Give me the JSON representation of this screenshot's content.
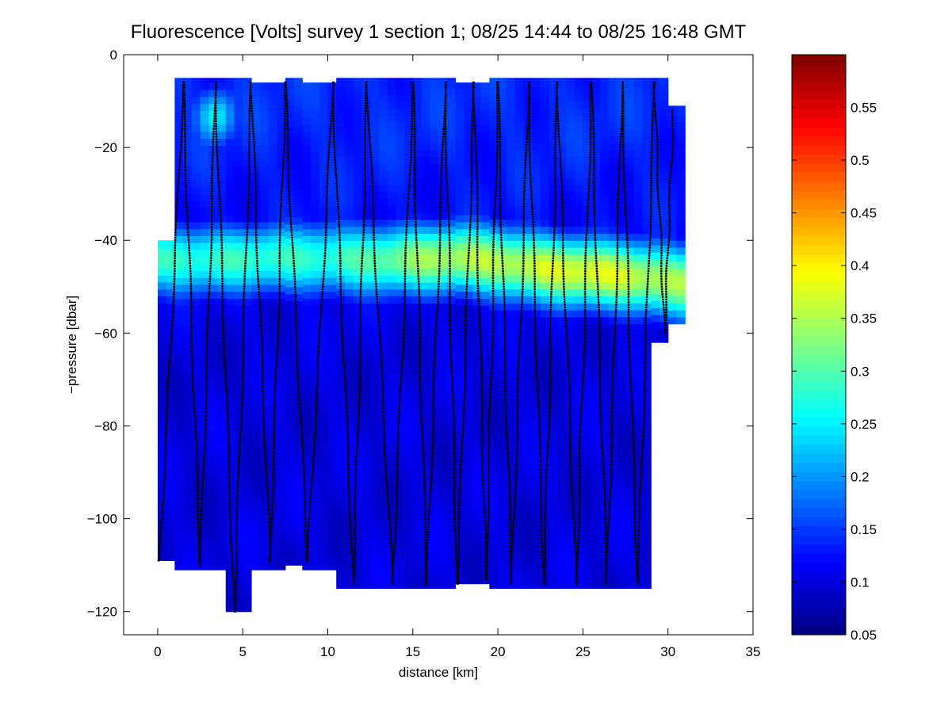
{
  "chart_data": {
    "type": "heatmap",
    "title": "Fluorescence [Volts] survey 1 section 1; 08/25 14:44 to 08/25 16:48 GMT",
    "xlabel": "distance [km]",
    "ylabel": "−pressure [dbar]",
    "xlim": [
      -2,
      35
    ],
    "ylim": [
      -125,
      0
    ],
    "xticks": [
      0,
      5,
      10,
      15,
      20,
      25,
      30,
      35
    ],
    "yticks": [
      0,
      -20,
      -40,
      -60,
      -80,
      -100,
      -120
    ],
    "ytick_labels": [
      "0",
      "−20",
      "−40",
      "−60",
      "−80",
      "−100",
      "−120"
    ],
    "colorbar": {
      "colormap": "jet",
      "clim": [
        0.05,
        0.6
      ],
      "ticks": [
        0.05,
        0.1,
        0.15,
        0.2,
        0.25,
        0.3,
        0.35,
        0.4,
        0.45,
        0.5,
        0.55
      ],
      "tick_labels": [
        "0.05",
        "0.1",
        "0.15",
        "0.2",
        "0.25",
        "0.3",
        "0.35",
        "0.4",
        "0.45",
        "0.5",
        "0.55"
      ]
    },
    "data_coverage": [
      {
        "x": [
          0,
          1
        ],
        "y": [
          -109,
          -40
        ]
      },
      {
        "x": [
          1,
          5.5
        ],
        "y": [
          -111,
          -5
        ]
      },
      {
        "x": [
          4,
          5.5
        ],
        "y": [
          -120,
          -111
        ]
      },
      {
        "x": [
          5.5,
          7.5
        ],
        "y": [
          -111,
          -6
        ]
      },
      {
        "x": [
          7.5,
          8.5
        ],
        "y": [
          -110,
          -5
        ]
      },
      {
        "x": [
          8.5,
          10.5
        ],
        "y": [
          -111,
          -6
        ]
      },
      {
        "x": [
          10.5,
          17.5
        ],
        "y": [
          -115,
          -5
        ]
      },
      {
        "x": [
          17.5,
          19.5
        ],
        "y": [
          -114,
          -6
        ]
      },
      {
        "x": [
          19.5,
          29
        ],
        "y": [
          -115,
          -5
        ]
      },
      {
        "x": [
          29,
          30
        ],
        "y": [
          -62,
          -5
        ]
      },
      {
        "x": [
          30,
          31
        ],
        "y": [
          -58,
          -11
        ]
      }
    ],
    "field_features": [
      {
        "kind": "chlorophyll_max_layer",
        "depth": -44,
        "thickness": 8,
        "value_range": [
          0.22,
          0.36
        ]
      },
      {
        "kind": "surface_patch",
        "x": 3.4,
        "depth": -13,
        "value": 0.22
      },
      {
        "kind": "background",
        "value_range": [
          0.06,
          0.14
        ]
      }
    ],
    "profiles": [
      {
        "x_top": 1.5,
        "x_bottom": 0.1,
        "y_top": -6,
        "y_bottom": -109
      },
      {
        "x_top": 1.5,
        "x_bottom": 2.5,
        "y_top": -6,
        "y_bottom": -110
      },
      {
        "x_top": 3.4,
        "x_bottom": 2.5,
        "y_top": -6,
        "y_bottom": -110
      },
      {
        "x_top": 3.4,
        "x_bottom": 4.5,
        "y_top": -6,
        "y_bottom": -120
      },
      {
        "x_top": 5.5,
        "x_bottom": 4.5,
        "y_top": -6,
        "y_bottom": -120
      },
      {
        "x_top": 5.5,
        "x_bottom": 6.6,
        "y_top": -6,
        "y_bottom": -109
      },
      {
        "x_top": 7.5,
        "x_bottom": 6.6,
        "y_top": -6,
        "y_bottom": -109
      },
      {
        "x_top": 7.5,
        "x_bottom": 8.8,
        "y_top": -6,
        "y_bottom": -109
      },
      {
        "x_top": 10.3,
        "x_bottom": 8.8,
        "y_top": -6,
        "y_bottom": -109
      },
      {
        "x_top": 10.3,
        "x_bottom": 11.5,
        "y_top": -6,
        "y_bottom": -114
      },
      {
        "x_top": 12.3,
        "x_bottom": 11.5,
        "y_top": -6,
        "y_bottom": -114
      },
      {
        "x_top": 12.3,
        "x_bottom": 13.8,
        "y_top": -6,
        "y_bottom": -114
      },
      {
        "x_top": 15.0,
        "x_bottom": 13.8,
        "y_top": -6,
        "y_bottom": -114
      },
      {
        "x_top": 15.0,
        "x_bottom": 15.8,
        "y_top": -6,
        "y_bottom": -114
      },
      {
        "x_top": 16.9,
        "x_bottom": 15.8,
        "y_top": -6,
        "y_bottom": -114
      },
      {
        "x_top": 16.9,
        "x_bottom": 17.6,
        "y_top": -6,
        "y_bottom": -114
      },
      {
        "x_top": 18.6,
        "x_bottom": 17.6,
        "y_top": -6,
        "y_bottom": -114
      },
      {
        "x_top": 18.6,
        "x_bottom": 19.3,
        "y_top": -6,
        "y_bottom": -113
      },
      {
        "x_top": 20.0,
        "x_bottom": 19.3,
        "y_top": -6,
        "y_bottom": -113
      },
      {
        "x_top": 20.0,
        "x_bottom": 20.8,
        "y_top": -6,
        "y_bottom": -114
      },
      {
        "x_top": 21.8,
        "x_bottom": 20.8,
        "y_top": -6,
        "y_bottom": -114
      },
      {
        "x_top": 21.8,
        "x_bottom": 22.7,
        "y_top": -6,
        "y_bottom": -114
      },
      {
        "x_top": 23.5,
        "x_bottom": 22.7,
        "y_top": -6,
        "y_bottom": -114
      },
      {
        "x_top": 23.5,
        "x_bottom": 24.6,
        "y_top": -6,
        "y_bottom": -114
      },
      {
        "x_top": 25.5,
        "x_bottom": 24.6,
        "y_top": -6,
        "y_bottom": -114
      },
      {
        "x_top": 25.5,
        "x_bottom": 26.4,
        "y_top": -6,
        "y_bottom": -114
      },
      {
        "x_top": 27.3,
        "x_bottom": 26.4,
        "y_top": -6,
        "y_bottom": -114
      },
      {
        "x_top": 27.3,
        "x_bottom": 28.2,
        "y_top": -6,
        "y_bottom": -114
      },
      {
        "x_top": 29.2,
        "x_bottom": 28.2,
        "y_top": -6,
        "y_bottom": -114
      },
      {
        "x_top": 29.2,
        "x_bottom": 29.8,
        "y_top": -6,
        "y_bottom": -60
      },
      {
        "x_top": 30.3,
        "x_bottom": 29.8,
        "y_top": -12,
        "y_bottom": -60
      }
    ]
  }
}
